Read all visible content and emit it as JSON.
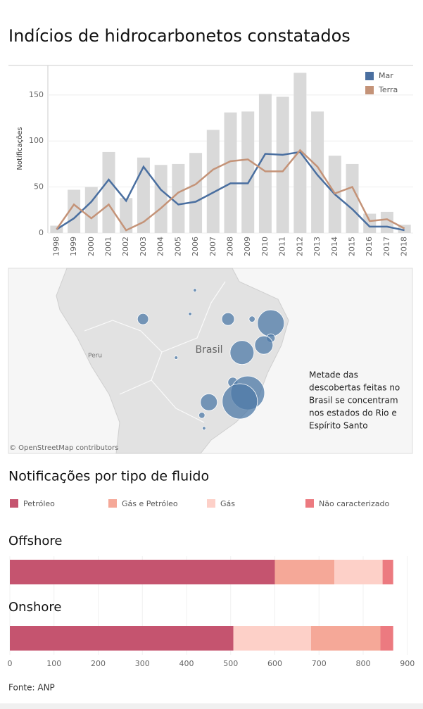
{
  "title": "Indícios de hidrocarbonetos constatados",
  "source": "Fonte: ANP",
  "chart_data": [
    {
      "type": "bar",
      "ylabel": "Notificações",
      "categories": [
        "1998",
        "1999",
        "2000",
        "2001",
        "2002",
        "2003",
        "2004",
        "2005",
        "2006",
        "2007",
        "2008",
        "2009",
        "2010",
        "2011",
        "2012",
        "2013",
        "2014",
        "2015",
        "2016",
        "2017",
        "2018"
      ],
      "bars": {
        "color": "#d9d9d9",
        "values": [
          8,
          47,
          50,
          88,
          38,
          82,
          74,
          75,
          87,
          112,
          131,
          132,
          151,
          148,
          174,
          132,
          84,
          75,
          21,
          23,
          9
        ]
      },
      "series": [
        {
          "name": "Mar",
          "color": "#4a6fa0",
          "values": [
            4,
            16,
            34,
            58,
            35,
            72,
            47,
            31,
            34,
            44,
            54,
            54,
            86,
            85,
            88,
            63,
            42,
            26,
            7,
            7,
            3
          ]
        },
        {
          "name": "Terra",
          "color": "#c49378",
          "values": [
            4,
            31,
            16,
            31,
            3,
            12,
            27,
            44,
            53,
            69,
            78,
            80,
            67,
            67,
            90,
            72,
            43,
            50,
            13,
            15,
            5
          ]
        }
      ],
      "ylim": [
        0,
        182
      ],
      "yticks": [
        0,
        50,
        100,
        150
      ],
      "grid": true,
      "legend": "top-right"
    },
    {
      "type": "map",
      "labels": [
        "Brasil",
        "Peru"
      ],
      "attribution": "© OpenStreetMap contributors",
      "annotation": [
        "Metade das",
        "descobertas feitas no",
        "Brasil se concentram",
        "nos estados do Rio e",
        "Espírito Santo"
      ],
      "color": "#4e79a7",
      "bubbles": [
        {
          "lon": -65.4,
          "lat": -5.2,
          "value": 10
        },
        {
          "lon": -54.6,
          "lat": -4.1,
          "value": 1
        },
        {
          "lon": -53.5,
          "lat": 1.0,
          "value": 1
        },
        {
          "lon": -45.9,
          "lat": -5.2,
          "value": 13
        },
        {
          "lon": -40.4,
          "lat": -5.2,
          "value": 3
        },
        {
          "lon": -36.1,
          "lat": -6.1,
          "value": 58
        },
        {
          "lon": -36.1,
          "lat": -9.3,
          "value": 6
        },
        {
          "lon": -37.7,
          "lat": -10.8,
          "value": 27
        },
        {
          "lon": -42.7,
          "lat": -12.4,
          "value": 46
        },
        {
          "lon": -57.8,
          "lat": -13.5,
          "value": 1
        },
        {
          "lon": -44.8,
          "lat": -18.8,
          "value": 8
        },
        {
          "lon": -41.4,
          "lat": -21.1,
          "value": 92
        },
        {
          "lon": -43.2,
          "lat": -22.9,
          "value": 100
        },
        {
          "lon": -50.3,
          "lat": -23.1,
          "value": 23
        },
        {
          "lon": -51.9,
          "lat": -25.9,
          "value": 3
        },
        {
          "lon": -51.4,
          "lat": -28.7,
          "value": 1
        }
      ]
    },
    {
      "type": "bar",
      "orientation": "horizontal",
      "stacked": true,
      "title": "Notificações por tipo de fluido",
      "categories": [
        "Offshore",
        "Onshore"
      ],
      "series": [
        {
          "name": "Petróleo",
          "color": "#c5546f",
          "values": [
            600,
            506
          ]
        },
        {
          "name": "Gás e Petróleo",
          "color": "#f5a898",
          "values": [
            135,
            157
          ]
        },
        {
          "name": "Gás",
          "color": "#fdd0c8",
          "values": [
            109,
            176
          ]
        },
        {
          "name": "Não caracterizado",
          "color": "#ec7a80",
          "values": [
            24,
            29
          ]
        }
      ],
      "xlim": [
        0,
        910
      ],
      "xticks": [
        0,
        100,
        200,
        300,
        400,
        500,
        600,
        700,
        800,
        900
      ],
      "grid": true
    }
  ]
}
